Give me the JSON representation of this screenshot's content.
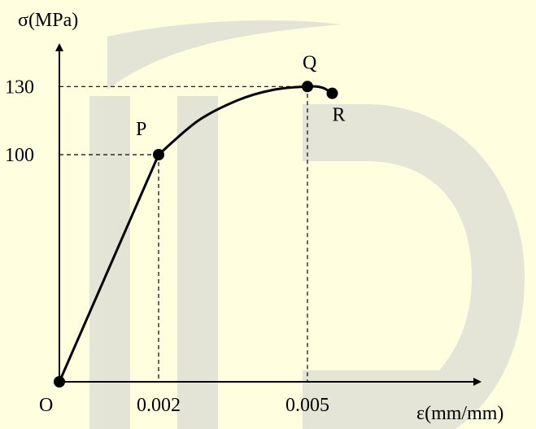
{
  "chart_data": {
    "type": "line",
    "title": "",
    "ylabel": "σ(MPa)",
    "xlabel": "ε(mm/mm)",
    "origin_label": "O",
    "x_ticks": [
      {
        "value": 0.002,
        "label": "0.002"
      },
      {
        "value": 0.005,
        "label": "0.005"
      }
    ],
    "y_ticks": [
      {
        "value": 100,
        "label": "100"
      },
      {
        "value": 130,
        "label": "130"
      }
    ],
    "xlim": [
      0,
      0.0085
    ],
    "ylim": [
      0,
      137
    ],
    "grid": false,
    "points": [
      {
        "name": "O",
        "x": 0,
        "y": 0
      },
      {
        "name": "P",
        "x": 0.002,
        "y": 100
      },
      {
        "name": "Q",
        "x": 0.005,
        "y": 130
      },
      {
        "name": "R",
        "x": 0.0055,
        "y": 127
      }
    ],
    "series": [
      {
        "x": [
          0,
          0.002,
          0.0028,
          0.0036,
          0.0043,
          0.005,
          0.0053,
          0.0055
        ],
        "y": [
          0,
          100,
          115,
          124,
          128.5,
          130,
          129.5,
          127
        ]
      }
    ]
  },
  "colors": {
    "background": "#ffffe0",
    "watermark": "#cfcfcf",
    "line": "#000000"
  }
}
